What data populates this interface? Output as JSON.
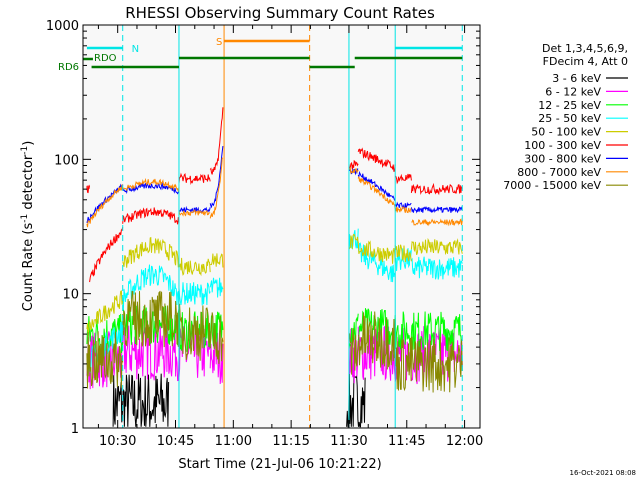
{
  "chart_data": {
    "type": "line",
    "title": "RHESSI Observing Summary Count Rates",
    "xlabel": "Start Time (21-Jul-06 10:21:22)",
    "ylabel_main": "Count Rate (s",
    "ylabel_sup1": "-1",
    "ylabel_mid": " detector",
    "ylabel_sup2": "-1",
    "ylabel_end": ")",
    "y_scale": "log",
    "ylim": [
      1,
      1000
    ],
    "xlim_minutes": [
      10.367,
      12.05
    ],
    "x_ticks": [
      {
        "label": "10:30",
        "hour": 10.5
      },
      {
        "label": "10:45",
        "hour": 10.75
      },
      {
        "label": "11:00",
        "hour": 11.0
      },
      {
        "label": "11:15",
        "hour": 11.25
      },
      {
        "label": "11:30",
        "hour": 11.5
      },
      {
        "label": "11:45",
        "hour": 11.75
      },
      {
        "label": "12:00",
        "hour": 12.0
      }
    ],
    "y_ticks": [
      {
        "label": "1",
        "value": 1
      },
      {
        "label": "10",
        "value": 10
      },
      {
        "label": "100",
        "value": 100
      },
      {
        "label": "1000",
        "value": 1000
      }
    ],
    "legend_header": [
      "Det 1,3,4,5,6,9,",
      "FDecim 4, Att 0"
    ],
    "legend_placement": "right",
    "series": [
      {
        "name": "3 - 6 keV",
        "color": "#000000"
      },
      {
        "name": "6 - 12 keV",
        "color": "#ff00ff"
      },
      {
        "name": "12 - 25 keV",
        "color": "#00ff00"
      },
      {
        "name": "25 - 50 keV",
        "color": "#00ffff"
      },
      {
        "name": "50 - 100 keV",
        "color": "#cccc00"
      },
      {
        "name": "100 - 300 keV",
        "color": "#ff0000"
      },
      {
        "name": "300 - 800 keV",
        "color": "#0000ff"
      },
      {
        "name": "800 - 7000 keV",
        "color": "#ff8800"
      },
      {
        "name": "7000 - 15000 keV",
        "color": "#888800"
      }
    ],
    "flags": [
      {
        "label": "N",
        "color": "#00e5e5"
      },
      {
        "label": "S",
        "color": "#ff8800"
      },
      {
        "label": "RDO",
        "color": "#007700"
      },
      {
        "label": "RD6",
        "color": "#007700"
      }
    ],
    "timestamp": "16-Oct-2021 08:08"
  }
}
